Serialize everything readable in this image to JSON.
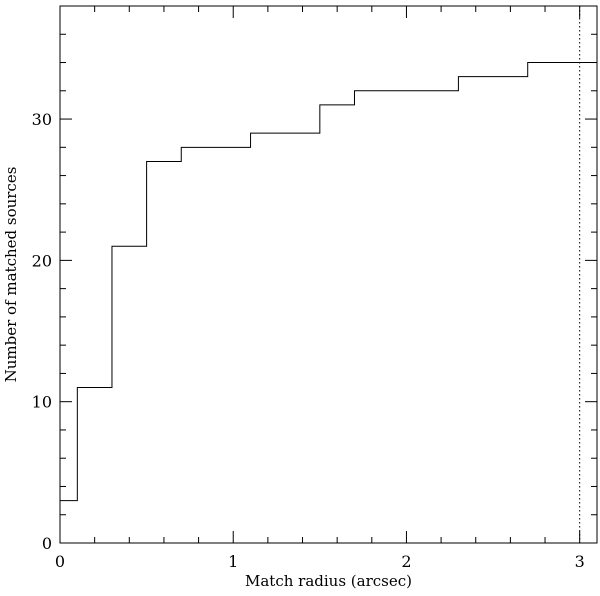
{
  "chart_data": {
    "type": "line",
    "subtype": "step",
    "xlabel": "Match radius (arcsec)",
    "ylabel": "Number of matched sources",
    "xlim": [
      0,
      3.1
    ],
    "ylim": [
      0,
      38
    ],
    "x_major_ticks": [
      0,
      1,
      2,
      3
    ],
    "x_minor_step": 0.2,
    "y_major_ticks": [
      0,
      10,
      20,
      30
    ],
    "y_minor_step": 2,
    "grid": false,
    "legend": "none",
    "reference_line": {
      "x": 3,
      "style": "dotted"
    },
    "series": [
      {
        "x": [
          0,
          0.1,
          0.3,
          0.5,
          0.7,
          0.9,
          1.1,
          1.3,
          1.5,
          1.7,
          1.9,
          2.1,
          2.3,
          2.5,
          2.7,
          2.9,
          3.1
        ],
        "y": [
          3,
          11,
          21,
          27,
          28,
          28,
          29,
          29,
          31,
          32,
          32,
          32,
          33,
          33,
          34,
          34,
          34
        ]
      }
    ]
  }
}
